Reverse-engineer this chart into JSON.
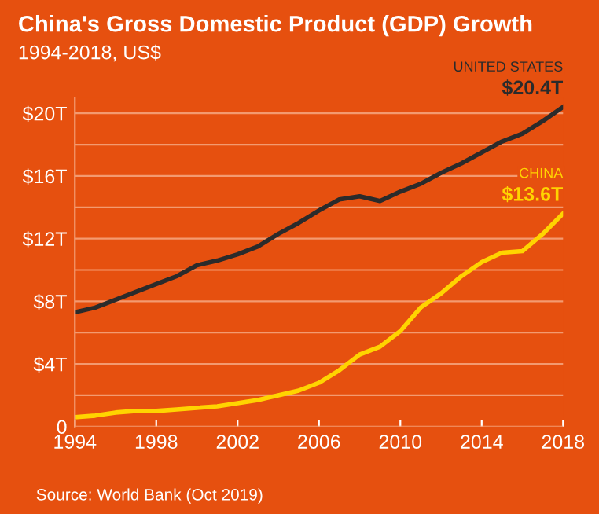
{
  "chart_data": {
    "type": "line",
    "title": "China's Gross Domestic Product (GDP) Growth",
    "subtitle": "1994-2018, US$",
    "x": [
      1994,
      1995,
      1996,
      1997,
      1998,
      1999,
      2000,
      2001,
      2002,
      2003,
      2004,
      2005,
      2006,
      2007,
      2008,
      2009,
      2010,
      2011,
      2012,
      2013,
      2014,
      2015,
      2016,
      2017,
      2018
    ],
    "series": [
      {
        "name": "UNITED STATES",
        "color": "#2b2b2b",
        "values": [
          7.3,
          7.6,
          8.1,
          8.6,
          9.1,
          9.6,
          10.3,
          10.6,
          11.0,
          11.5,
          12.3,
          13.0,
          13.8,
          14.5,
          14.7,
          14.4,
          15.0,
          15.5,
          16.2,
          16.8,
          17.5,
          18.2,
          18.7,
          19.5,
          20.4
        ]
      },
      {
        "name": "CHINA",
        "color": "#ffd400",
        "values": [
          0.6,
          0.7,
          0.9,
          1.0,
          1.0,
          1.1,
          1.2,
          1.3,
          1.5,
          1.7,
          2.0,
          2.3,
          2.8,
          3.6,
          4.6,
          5.1,
          6.1,
          7.6,
          8.5,
          9.6,
          10.5,
          11.1,
          11.2,
          12.3,
          13.6
        ]
      }
    ],
    "annotations": [
      {
        "text": "$20.4T",
        "x": 2018,
        "y": 20.4
      },
      {
        "text": "$13.6T",
        "x": 2018,
        "y": 13.6
      },
      "Source: World Bank (Oct 2019)"
    ],
    "xlim": [
      1994,
      2018
    ],
    "xticks": [
      1994,
      1998,
      2002,
      2006,
      2010,
      2014,
      2018
    ],
    "ylim": [
      0,
      21
    ],
    "yticks": [
      {
        "value": 0,
        "label": "0"
      },
      {
        "value": 2,
        "label": null
      },
      {
        "value": 4,
        "label": "$4T"
      },
      {
        "value": 6,
        "label": null
      },
      {
        "value": 8,
        "label": "$8T"
      },
      {
        "value": 10,
        "label": null
      },
      {
        "value": 12,
        "label": "$12T"
      },
      {
        "value": 14,
        "label": null
      },
      {
        "value": 16,
        "label": "$16T"
      },
      {
        "value": 18,
        "label": null
      },
      {
        "value": 20,
        "label": "$20T"
      }
    ],
    "grid": "y",
    "legend": false,
    "marker": "none",
    "line_style": "solid"
  }
}
